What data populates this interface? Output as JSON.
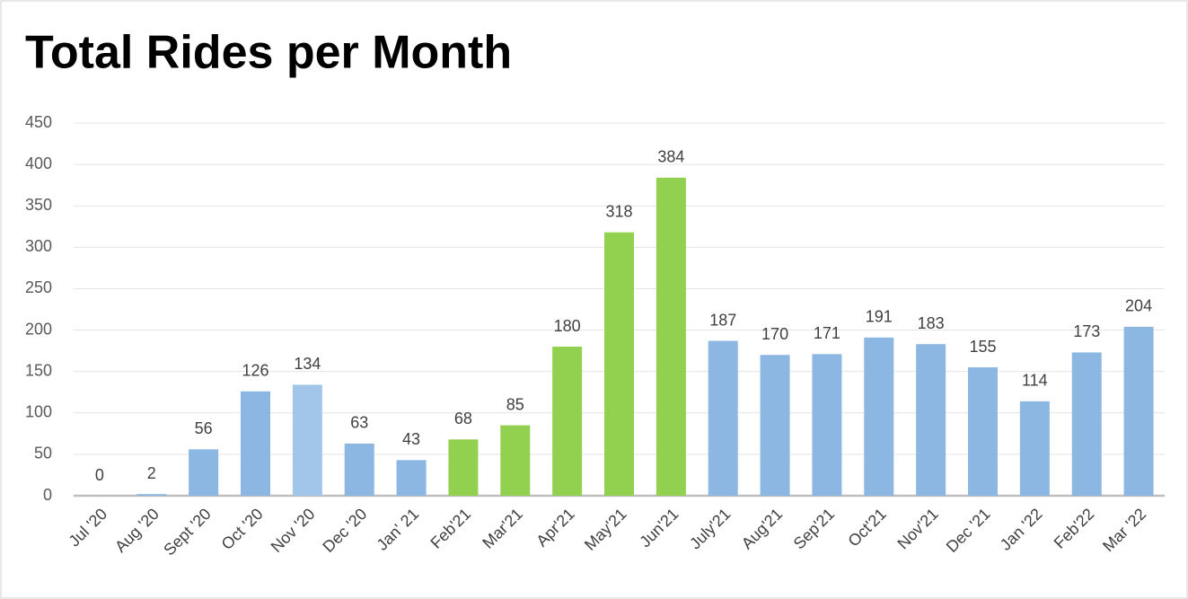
{
  "chart_data": {
    "type": "bar",
    "title": "Total Rides per Month",
    "categories": [
      "Jul '20",
      "Aug '20",
      "Sept '20",
      "Oct '20",
      "Nov '20",
      "Dec '20",
      "Jan' 21",
      "Feb'21",
      "Mar'21",
      "Apr'21",
      "May'21",
      "Jun'21",
      "July'21",
      "Aug'21",
      "Sep'21",
      "Oct'21",
      "Nov'21",
      "Dec '21",
      "Jan '22",
      "Feb'22",
      "Mar '22"
    ],
    "values": [
      0,
      2,
      56,
      126,
      134,
      63,
      43,
      68,
      85,
      180,
      318,
      384,
      187,
      170,
      171,
      191,
      183,
      155,
      114,
      173,
      204
    ],
    "colors": [
      "#8cb7e2",
      "#8cb7e2",
      "#8cb7e2",
      "#8cb7e2",
      "#a2c6ea",
      "#8cb7e2",
      "#8cb7e2",
      "#92d050",
      "#92d050",
      "#92d050",
      "#92d050",
      "#92d050",
      "#8cb7e2",
      "#8cb7e2",
      "#8cb7e2",
      "#8cb7e2",
      "#8cb7e2",
      "#8cb7e2",
      "#8cb7e2",
      "#8cb7e2",
      "#8cb7e2"
    ],
    "ylim": [
      0,
      450
    ],
    "yticks": [
      0,
      50,
      100,
      150,
      200,
      250,
      300,
      350,
      400,
      450
    ],
    "grid": true
  }
}
